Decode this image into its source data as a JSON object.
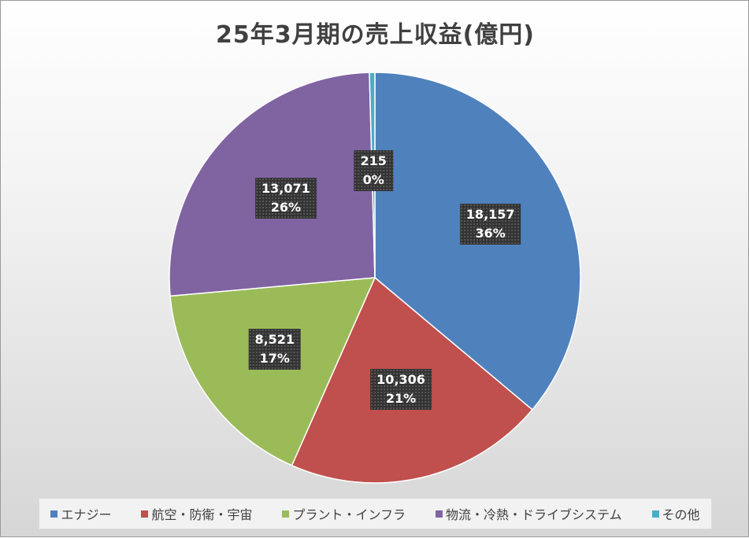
{
  "chart_data": {
    "type": "pie",
    "title": "25年3月期の売上収益(億円)",
    "categories": [
      "エナジー",
      "航空・防衛・宇宙",
      "プラント・インフラ",
      "物流・冷熱・ドライブシステム",
      "その他"
    ],
    "values": [
      18157,
      10306,
      8521,
      13071,
      215
    ],
    "percent_labels": [
      "36%",
      "21%",
      "17%",
      "26%",
      "0%"
    ],
    "value_labels": [
      "18,157",
      "10,306",
      "8,521",
      "13,071",
      "215"
    ],
    "colors": [
      "#4f81bd",
      "#c0504d",
      "#9bbb59",
      "#8064a2",
      "#4bacc6"
    ],
    "legend_position": "bottom"
  }
}
